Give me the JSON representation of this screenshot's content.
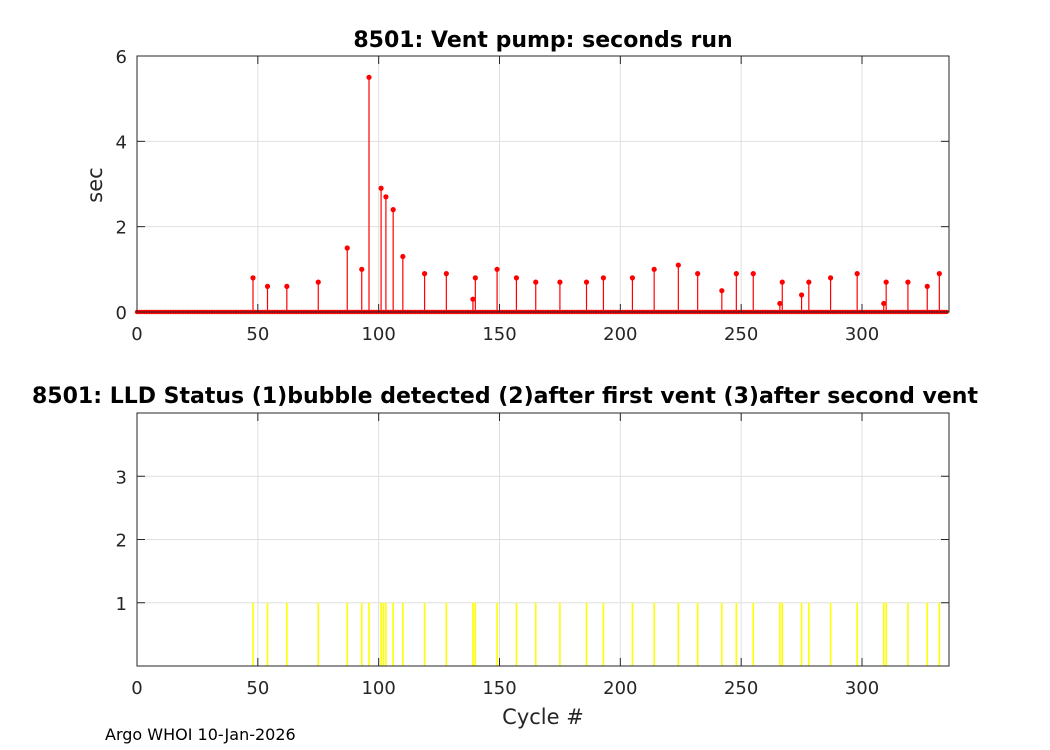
{
  "footer": "Argo WHOI 10-Jan-2026",
  "chart_data": [
    {
      "type": "stem",
      "title": "8501: Vent pump: seconds run",
      "xlabel": "",
      "ylabel": "sec",
      "xlim": [
        0,
        336
      ],
      "ylim": [
        0,
        6
      ],
      "xticks": [
        0,
        50,
        100,
        150,
        200,
        250,
        300
      ],
      "yticks": [
        0,
        2,
        4,
        6
      ],
      "grid": true,
      "color": "#ff0000",
      "x_range_cycles": [
        0,
        335
      ],
      "baseline_value": 0,
      "points": [
        [
          48,
          0.8
        ],
        [
          54,
          0.6
        ],
        [
          62,
          0.6
        ],
        [
          75,
          0.7
        ],
        [
          87,
          1.5
        ],
        [
          93,
          1.0
        ],
        [
          96,
          5.5
        ],
        [
          101,
          2.9
        ],
        [
          103,
          2.7
        ],
        [
          106,
          2.4
        ],
        [
          110,
          1.3
        ],
        [
          119,
          0.9
        ],
        [
          128,
          0.9
        ],
        [
          139,
          0.3
        ],
        [
          140,
          0.8
        ],
        [
          149,
          1.0
        ],
        [
          157,
          0.8
        ],
        [
          165,
          0.7
        ],
        [
          175,
          0.7
        ],
        [
          186,
          0.7
        ],
        [
          193,
          0.8
        ],
        [
          205,
          0.8
        ],
        [
          214,
          1.0
        ],
        [
          224,
          1.1
        ],
        [
          232,
          0.9
        ],
        [
          242,
          0.5
        ],
        [
          248,
          0.9
        ],
        [
          255,
          0.9
        ],
        [
          266,
          0.2
        ],
        [
          267,
          0.7
        ],
        [
          275,
          0.4
        ],
        [
          278,
          0.7
        ],
        [
          287,
          0.8
        ],
        [
          298,
          0.9
        ],
        [
          309,
          0.2
        ],
        [
          310,
          0.7
        ],
        [
          319,
          0.7
        ],
        [
          327,
          0.6
        ],
        [
          332,
          0.9
        ]
      ]
    },
    {
      "type": "bar",
      "title": "8501: LLD Status   (1)bubble detected   (2)after first vent  (3)after second vent",
      "xlabel": "Cycle #",
      "ylabel": "",
      "xlim": [
        0,
        336
      ],
      "ylim": [
        0,
        4
      ],
      "xticks": [
        0,
        50,
        100,
        150,
        200,
        250,
        300
      ],
      "yticks": [
        1,
        2,
        3
      ],
      "grid": true,
      "color": "#ffff00",
      "points": [
        [
          48,
          1
        ],
        [
          54,
          1
        ],
        [
          62,
          1
        ],
        [
          75,
          1
        ],
        [
          87,
          1
        ],
        [
          93,
          1
        ],
        [
          96,
          1
        ],
        [
          101,
          1
        ],
        [
          102,
          1
        ],
        [
          103,
          1
        ],
        [
          106,
          1
        ],
        [
          110,
          1
        ],
        [
          119,
          1
        ],
        [
          128,
          1
        ],
        [
          139,
          1
        ],
        [
          140,
          1
        ],
        [
          149,
          1
        ],
        [
          157,
          1
        ],
        [
          165,
          1
        ],
        [
          175,
          1
        ],
        [
          186,
          1
        ],
        [
          193,
          1
        ],
        [
          205,
          1
        ],
        [
          214,
          1
        ],
        [
          224,
          1
        ],
        [
          232,
          1
        ],
        [
          242,
          1
        ],
        [
          248,
          1
        ],
        [
          255,
          1
        ],
        [
          266,
          1
        ],
        [
          267,
          1
        ],
        [
          275,
          1
        ],
        [
          278,
          1
        ],
        [
          287,
          1
        ],
        [
          298,
          1
        ],
        [
          309,
          1
        ],
        [
          310,
          1
        ],
        [
          319,
          1
        ],
        [
          327,
          1
        ],
        [
          332,
          1
        ]
      ]
    }
  ]
}
